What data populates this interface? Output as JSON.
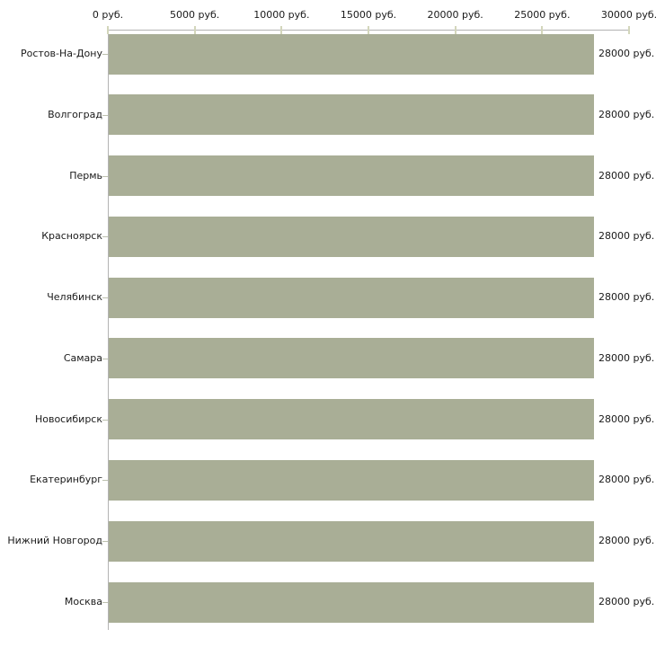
{
  "chart_data": {
    "type": "bar",
    "orientation": "horizontal",
    "title": "",
    "categories": [
      "Ростов-На-Дону",
      "Волгоград",
      "Пермь",
      "Красноярск",
      "Челябинск",
      "Самара",
      "Новосибирск",
      "Екатеринбург",
      "Нижний Новгород",
      "Москва"
    ],
    "values": [
      28000,
      28000,
      28000,
      28000,
      28000,
      28000,
      28000,
      28000,
      28000,
      28000
    ],
    "value_labels": [
      "28000 руб.",
      "28000 руб.",
      "28000 руб.",
      "28000 руб.",
      "28000 руб.",
      "28000 руб.",
      "28000 руб.",
      "28000 руб.",
      "28000 руб.",
      "28000 руб."
    ],
    "x_axis": {
      "position": "top",
      "xlim": [
        0,
        30000
      ],
      "ticks": [
        0,
        5000,
        10000,
        15000,
        20000,
        25000,
        30000
      ],
      "tick_labels": [
        "0 руб.",
        "5000 руб.",
        "10000 руб.",
        "15000 руб.",
        "20000 руб.",
        "25000 руб.",
        "30000 руб."
      ]
    },
    "grid": false,
    "legend": null,
    "colors": {
      "bar": "#a9ae96",
      "axis_line": "#b3b3b3",
      "axis_tick": "#d3d6bb",
      "row_tick": "#bcc0ae",
      "text": "#1a1a1a",
      "background": "#ffffff"
    }
  }
}
